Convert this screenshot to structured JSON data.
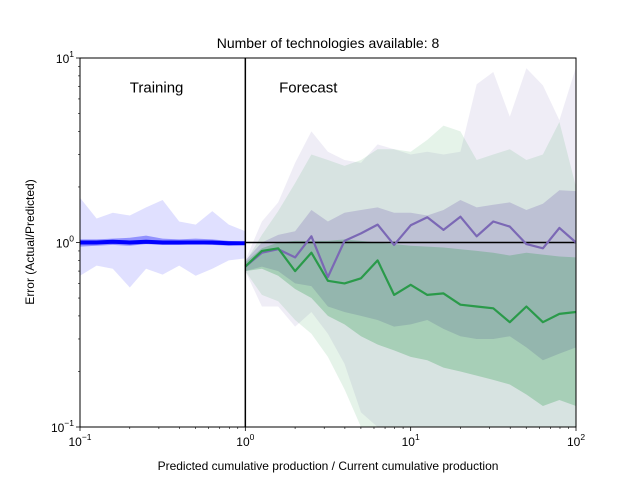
{
  "chart_data": {
    "type": "line",
    "title": "Number of technologies available: 8",
    "xlabel": "Predicted cumulative production / Current cumulative production",
    "ylabel": "Error (Actual/Predicted)",
    "xscale": "log",
    "yscale": "log",
    "xlim": [
      0.1,
      100
    ],
    "ylim": [
      0.1,
      10
    ],
    "x_ticks": [
      {
        "value": 0.1,
        "base": "10",
        "exp": "−1"
      },
      {
        "value": 1,
        "base": "10",
        "exp": "0"
      },
      {
        "value": 10,
        "base": "10",
        "exp": "1"
      },
      {
        "value": 100,
        "base": "10",
        "exp": "2"
      }
    ],
    "y_ticks": [
      {
        "value": 0.1,
        "base": "10",
        "exp": "−1"
      },
      {
        "value": 1,
        "base": "10",
        "exp": "0"
      },
      {
        "value": 10,
        "base": "10",
        "exp": "1"
      }
    ],
    "annotations": [
      {
        "text": "Training",
        "x": 0.2,
        "y": 6.5
      },
      {
        "text": "Forecast",
        "x": 1.6,
        "y": 6.5
      }
    ],
    "reference_lines": [
      {
        "orientation": "vertical",
        "value": 1,
        "color": "#000000"
      },
      {
        "orientation": "horizontal",
        "value": 1,
        "from_x": 1,
        "to_x": 100,
        "color": "#000000"
      }
    ],
    "training": {
      "color": "#0000ff",
      "x": [
        0.1,
        0.126,
        0.158,
        0.2,
        0.251,
        0.316,
        0.398,
        0.501,
        0.631,
        0.794,
        1.0
      ],
      "median": [
        1.0,
        1.0,
        1.01,
        1.0,
        1.01,
        1.0,
        1.0,
        1.0,
        1.0,
        0.99,
        0.99
      ],
      "band_inner_low": [
        0.95,
        0.96,
        0.97,
        0.96,
        0.98,
        0.97,
        0.97,
        0.98,
        0.97,
        0.96,
        0.97
      ],
      "band_inner_high": [
        1.04,
        1.04,
        1.05,
        1.06,
        1.09,
        1.05,
        1.04,
        1.05,
        1.04,
        1.02,
        1.01
      ],
      "band_outer_low": [
        0.66,
        0.75,
        0.72,
        0.57,
        0.72,
        0.67,
        0.75,
        0.66,
        0.72,
        0.8,
        0.82
      ],
      "band_outer_high": [
        1.75,
        1.35,
        1.45,
        1.4,
        1.55,
        1.7,
        1.3,
        1.25,
        1.48,
        1.25,
        1.15
      ]
    },
    "series": [
      {
        "color": "#7b68b5",
        "x": [
          1.0,
          1.26,
          1.58,
          2.0,
          2.51,
          3.16,
          3.98,
          5.01,
          6.31,
          7.94,
          10.0,
          12.6,
          15.8,
          20.0,
          25.1,
          31.6,
          39.8,
          50.1,
          63.1,
          79.4,
          100
        ],
        "median": [
          0.74,
          0.88,
          0.92,
          0.83,
          1.08,
          0.65,
          1.02,
          1.12,
          1.25,
          0.97,
          1.24,
          1.37,
          1.17,
          1.38,
          1.08,
          1.3,
          1.22,
          0.98,
          0.93,
          1.2,
          1.0
        ],
        "band_inner_low": [
          0.7,
          0.74,
          0.7,
          0.6,
          0.58,
          0.45,
          0.42,
          0.4,
          0.38,
          0.35,
          0.36,
          0.38,
          0.34,
          0.31,
          0.3,
          0.3,
          0.31,
          0.27,
          0.23,
          0.25,
          0.27
        ],
        "band_inner_high": [
          0.8,
          1.0,
          1.1,
          1.15,
          1.5,
          1.3,
          1.45,
          1.5,
          1.55,
          1.45,
          1.45,
          1.4,
          1.5,
          1.7,
          1.55,
          1.6,
          1.65,
          1.5,
          1.62,
          1.92,
          1.9
        ],
        "band_outer_low": [
          0.7,
          0.45,
          0.45,
          0.35,
          0.42,
          0.32,
          0.22,
          0.12,
          0.1,
          0.1,
          0.1,
          0.1,
          0.1,
          0.1,
          0.1,
          0.1,
          0.1,
          0.1,
          0.1,
          0.1,
          0.1
        ],
        "band_outer_high": [
          0.8,
          1.3,
          1.65,
          2.7,
          4.0,
          3.1,
          2.8,
          2.7,
          3.4,
          3.2,
          3.0,
          3.1,
          3.0,
          3.1,
          7.2,
          8.4,
          4.8,
          8.8,
          7.1,
          4.6,
          8.9
        ]
      },
      {
        "color": "#2a9a4a",
        "x": [
          1.0,
          1.26,
          1.58,
          2.0,
          2.51,
          3.16,
          3.98,
          5.01,
          6.31,
          7.94,
          10.0,
          12.6,
          15.8,
          20.0,
          25.1,
          31.6,
          39.8,
          50.1,
          63.1,
          79.4,
          100
        ],
        "median": [
          0.74,
          0.9,
          0.93,
          0.7,
          0.88,
          0.62,
          0.6,
          0.64,
          0.8,
          0.52,
          0.59,
          0.52,
          0.53,
          0.46,
          0.45,
          0.44,
          0.37,
          0.45,
          0.37,
          0.41,
          0.42
        ],
        "band_inner_low": [
          0.7,
          0.72,
          0.66,
          0.56,
          0.5,
          0.4,
          0.36,
          0.31,
          0.28,
          0.26,
          0.24,
          0.23,
          0.21,
          0.2,
          0.19,
          0.18,
          0.17,
          0.15,
          0.13,
          0.14,
          0.13
        ],
        "band_inner_high": [
          0.78,
          0.93,
          1.0,
          1.02,
          1.02,
          1.02,
          1.04,
          1.02,
          1.0,
          0.98,
          0.96,
          0.95,
          0.94,
          0.92,
          0.9,
          0.88,
          0.85,
          0.88,
          0.86,
          0.84,
          0.83
        ],
        "band_outer_low": [
          0.7,
          0.52,
          0.48,
          0.38,
          0.32,
          0.24,
          0.16,
          0.1,
          0.1,
          0.1,
          0.1,
          0.1,
          0.1,
          0.1,
          0.1,
          0.1,
          0.1,
          0.1,
          0.1,
          0.1,
          0.1
        ],
        "band_outer_high": [
          0.78,
          1.1,
          1.48,
          2.1,
          3.0,
          2.8,
          2.6,
          2.8,
          3.2,
          3.2,
          3.1,
          3.6,
          4.3,
          4.0,
          2.8,
          3.0,
          3.2,
          2.8,
          3.0,
          4.5,
          2.0
        ]
      }
    ]
  }
}
